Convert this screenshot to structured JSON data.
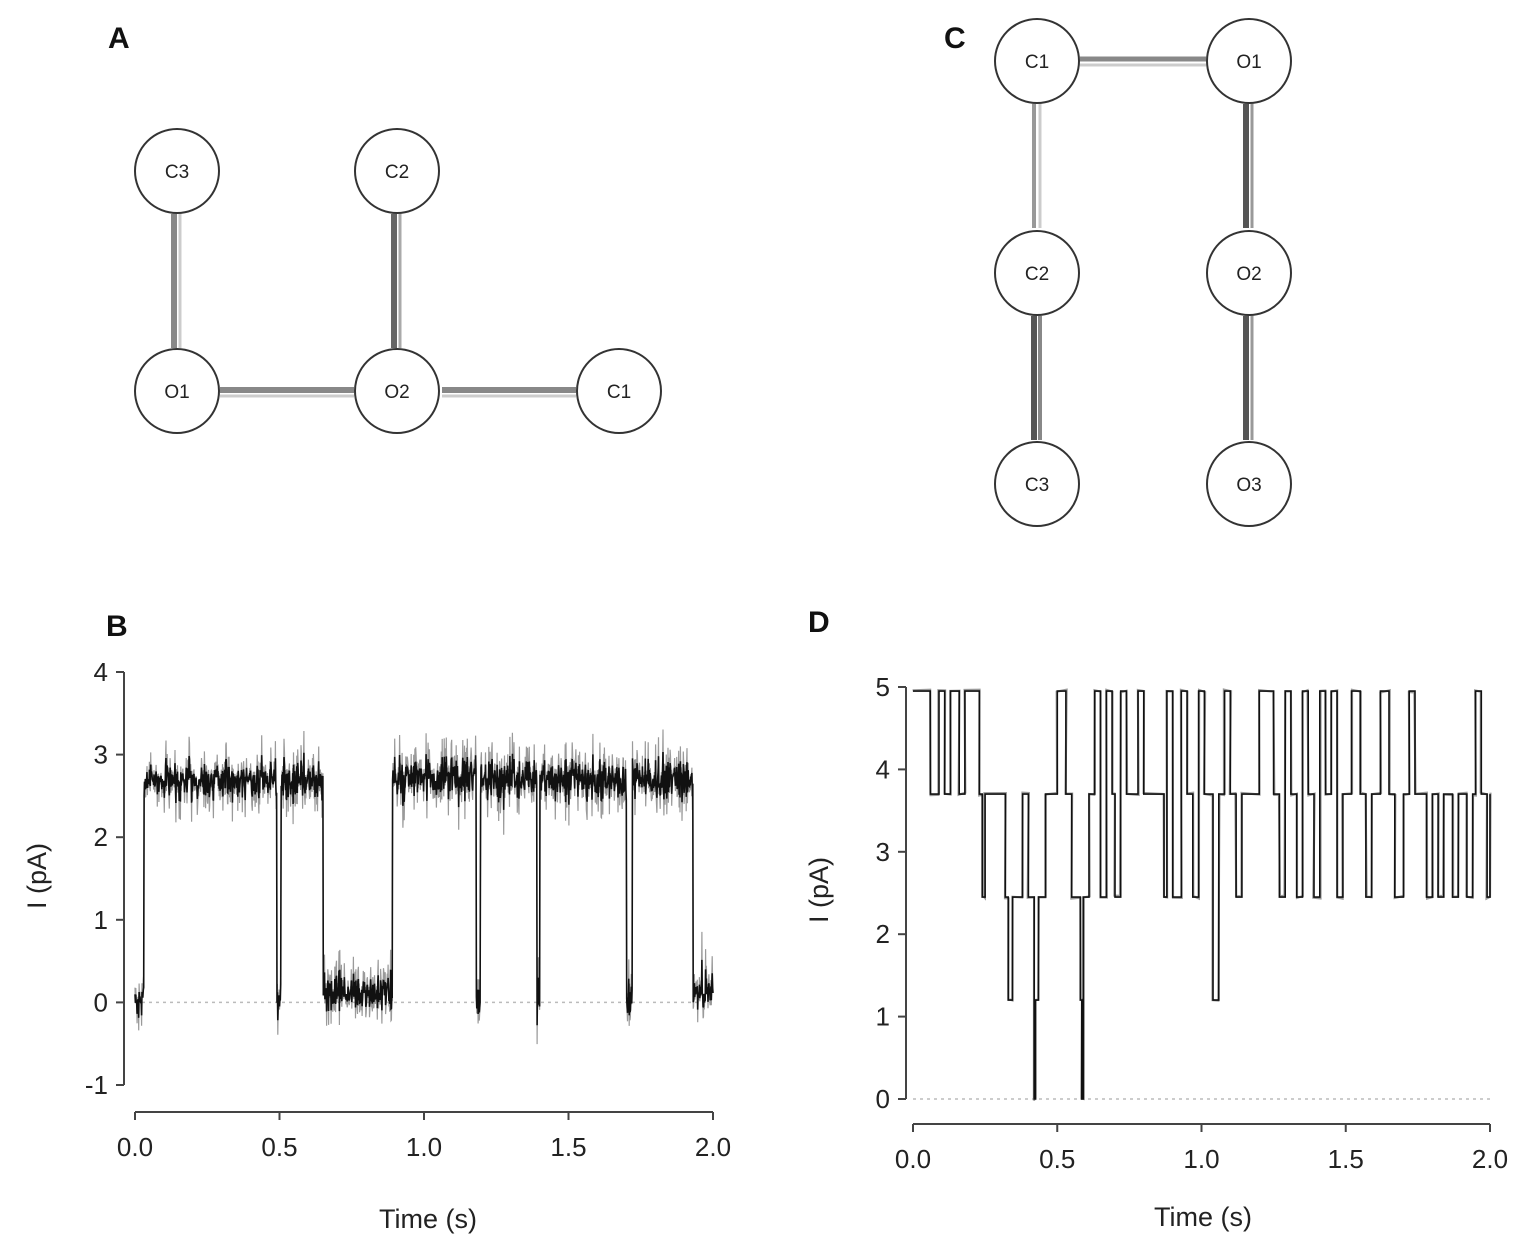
{
  "panels": {
    "A": "A",
    "B": "B",
    "C": "C",
    "D": "D"
  },
  "diagram_A": {
    "states": [
      "C3",
      "C2",
      "O1",
      "O2",
      "C1"
    ],
    "transitions": [
      [
        "C3",
        "O1"
      ],
      [
        "C2",
        "O2"
      ],
      [
        "O1",
        "O2"
      ],
      [
        "O2",
        "C1"
      ]
    ]
  },
  "diagram_C": {
    "states": [
      "C1",
      "O1",
      "C2",
      "O2",
      "C3",
      "O3"
    ],
    "transitions": [
      [
        "C1",
        "O1"
      ],
      [
        "C1",
        "C2"
      ],
      [
        "C2",
        "C3"
      ],
      [
        "O1",
        "O2"
      ],
      [
        "O2",
        "O3"
      ]
    ]
  },
  "chart_data": [
    {
      "panel": "B",
      "type": "line",
      "xlabel": "Time (s)",
      "ylabel": "I (pA)",
      "xlim": [
        0,
        2
      ],
      "ylim": [
        -1,
        4
      ],
      "xticks": [
        "0.0",
        "0.5",
        "1.0",
        "1.5",
        "2.0"
      ],
      "yticks": [
        "-1",
        "0",
        "1",
        "2",
        "3",
        "4"
      ],
      "baseline": 0,
      "levels": [
        0,
        2.7
      ],
      "noise_sd": 0.3,
      "segments": [
        {
          "start": 0.0,
          "end": 0.03,
          "level": 0
        },
        {
          "start": 0.03,
          "end": 0.49,
          "level": 2.7
        },
        {
          "start": 0.49,
          "end": 0.505,
          "level": 0
        },
        {
          "start": 0.505,
          "end": 0.65,
          "level": 2.7
        },
        {
          "start": 0.65,
          "end": 0.89,
          "level": 0.1
        },
        {
          "start": 0.89,
          "end": 1.18,
          "level": 2.7
        },
        {
          "start": 1.18,
          "end": 1.195,
          "level": 0
        },
        {
          "start": 1.195,
          "end": 1.39,
          "level": 2.7
        },
        {
          "start": 1.39,
          "end": 1.4,
          "level": 0
        },
        {
          "start": 1.4,
          "end": 1.7,
          "level": 2.7
        },
        {
          "start": 1.7,
          "end": 1.72,
          "level": 0
        },
        {
          "start": 1.72,
          "end": 1.93,
          "level": 2.7
        },
        {
          "start": 1.93,
          "end": 2.0,
          "level": 0.1
        }
      ]
    },
    {
      "panel": "D",
      "type": "line",
      "xlabel": "Time (s)",
      "ylabel": "I (pA)",
      "xlim": [
        0,
        2
      ],
      "ylim": [
        0,
        5
      ],
      "xticks": [
        "0.0",
        "0.5",
        "1.0",
        "1.5",
        "2.0"
      ],
      "yticks": [
        "0",
        "1",
        "2",
        "3",
        "4",
        "5"
      ],
      "baseline": 0,
      "levels": [
        0,
        1.2,
        2.45,
        3.7,
        4.95
      ],
      "transitions": [
        [
          0.0,
          4.95
        ],
        [
          0.06,
          3.7
        ],
        [
          0.09,
          4.95
        ],
        [
          0.11,
          3.7
        ],
        [
          0.13,
          4.95
        ],
        [
          0.16,
          3.7
        ],
        [
          0.18,
          4.95
        ],
        [
          0.23,
          3.7
        ],
        [
          0.24,
          2.45
        ],
        [
          0.25,
          3.7
        ],
        [
          0.32,
          2.45
        ],
        [
          0.33,
          1.2
        ],
        [
          0.345,
          2.45
        ],
        [
          0.38,
          3.7
        ],
        [
          0.4,
          2.45
        ],
        [
          0.42,
          0
        ],
        [
          0.425,
          1.2
        ],
        [
          0.435,
          2.45
        ],
        [
          0.46,
          3.7
        ],
        [
          0.5,
          4.95
        ],
        [
          0.53,
          3.7
        ],
        [
          0.55,
          2.45
        ],
        [
          0.58,
          1.2
        ],
        [
          0.585,
          0
        ],
        [
          0.59,
          2.45
        ],
        [
          0.61,
          3.7
        ],
        [
          0.63,
          4.95
        ],
        [
          0.65,
          2.45
        ],
        [
          0.67,
          4.95
        ],
        [
          0.69,
          3.7
        ],
        [
          0.7,
          2.45
        ],
        [
          0.72,
          4.95
        ],
        [
          0.74,
          3.7
        ],
        [
          0.78,
          4.95
        ],
        [
          0.8,
          3.7
        ],
        [
          0.87,
          2.45
        ],
        [
          0.88,
          4.95
        ],
        [
          0.9,
          2.45
        ],
        [
          0.93,
          4.95
        ],
        [
          0.95,
          3.7
        ],
        [
          0.97,
          2.45
        ],
        [
          0.99,
          4.95
        ],
        [
          1.01,
          3.7
        ],
        [
          1.04,
          1.2
        ],
        [
          1.06,
          3.7
        ],
        [
          1.08,
          4.95
        ],
        [
          1.1,
          3.7
        ],
        [
          1.12,
          2.45
        ],
        [
          1.14,
          3.7
        ],
        [
          1.2,
          4.95
        ],
        [
          1.25,
          3.7
        ],
        [
          1.27,
          2.45
        ],
        [
          1.29,
          4.95
        ],
        [
          1.31,
          3.7
        ],
        [
          1.33,
          2.45
        ],
        [
          1.35,
          4.95
        ],
        [
          1.37,
          3.7
        ],
        [
          1.39,
          2.45
        ],
        [
          1.41,
          4.95
        ],
        [
          1.43,
          3.7
        ],
        [
          1.45,
          4.95
        ],
        [
          1.47,
          2.45
        ],
        [
          1.49,
          3.7
        ],
        [
          1.52,
          4.95
        ],
        [
          1.55,
          3.7
        ],
        [
          1.57,
          2.45
        ],
        [
          1.59,
          3.7
        ],
        [
          1.62,
          4.95
        ],
        [
          1.65,
          3.7
        ],
        [
          1.67,
          2.45
        ],
        [
          1.7,
          3.7
        ],
        [
          1.72,
          4.95
        ],
        [
          1.74,
          3.7
        ],
        [
          1.78,
          2.45
        ],
        [
          1.8,
          3.7
        ],
        [
          1.82,
          2.45
        ],
        [
          1.84,
          3.7
        ],
        [
          1.87,
          2.45
        ],
        [
          1.89,
          3.7
        ],
        [
          1.92,
          2.45
        ],
        [
          1.94,
          3.7
        ],
        [
          1.95,
          4.95
        ],
        [
          1.97,
          3.7
        ],
        [
          1.99,
          2.45
        ],
        [
          2.0,
          3.7
        ]
      ]
    }
  ]
}
